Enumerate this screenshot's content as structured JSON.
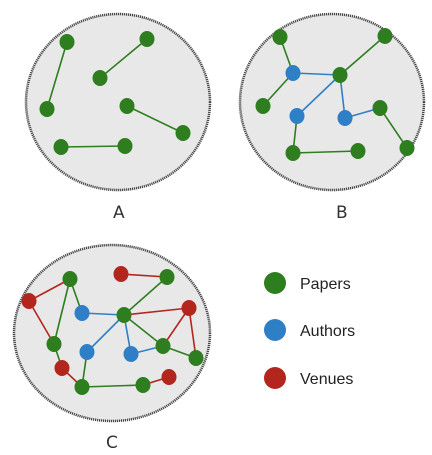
{
  "colors": {
    "paper": "#2e7d1f",
    "author": "#2f7fc6",
    "venue": "#b3261e",
    "circle_fill": "#e8e8e8",
    "circle_stroke": "#444444"
  },
  "panels": [
    {
      "label": "A"
    },
    {
      "label": "B"
    },
    {
      "label": "C"
    }
  ],
  "legend": [
    {
      "label": "Papers",
      "type": "paper"
    },
    {
      "label": "Authors",
      "type": "author"
    },
    {
      "label": "Venues",
      "type": "venue"
    }
  ]
}
